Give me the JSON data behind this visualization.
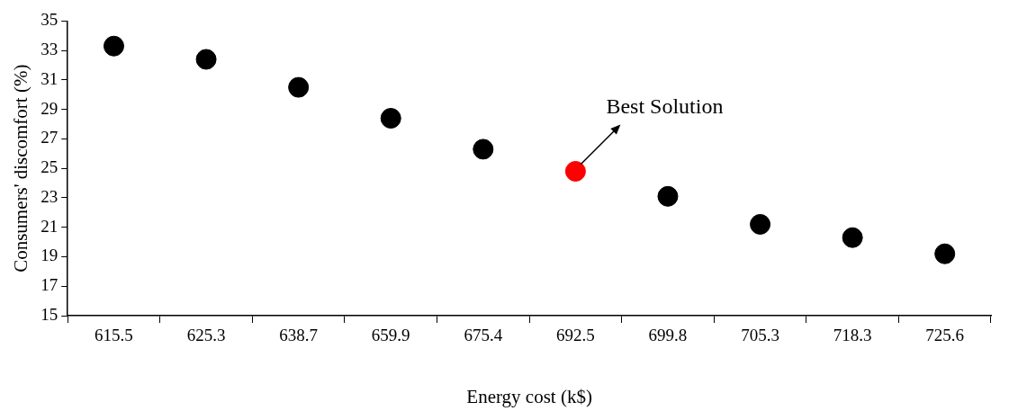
{
  "chart_data": {
    "type": "scatter",
    "xlabel": "Energy cost (k$)",
    "ylabel": "Consumers' discomfort (%)",
    "categories": [
      "615.5",
      "625.3",
      "638.7",
      "659.9",
      "675.4",
      "692.5",
      "699.8",
      "705.3",
      "718.3",
      "725.6"
    ],
    "values": [
      33.3,
      32.4,
      30.5,
      28.4,
      26.3,
      24.8,
      23.1,
      21.2,
      20.3,
      19.2
    ],
    "colors": [
      "#000000",
      "#000000",
      "#000000",
      "#000000",
      "#000000",
      "#ff0000",
      "#000000",
      "#000000",
      "#000000",
      "#000000"
    ],
    "ylim": [
      15,
      35
    ],
    "yticks": [
      15,
      17,
      19,
      21,
      23,
      25,
      27,
      29,
      31,
      33,
      35
    ],
    "grid": false,
    "legend": false,
    "marker": "circle",
    "annotations": [
      {
        "text": "Best Solution",
        "x": "692.5",
        "y": 24.8
      }
    ]
  }
}
